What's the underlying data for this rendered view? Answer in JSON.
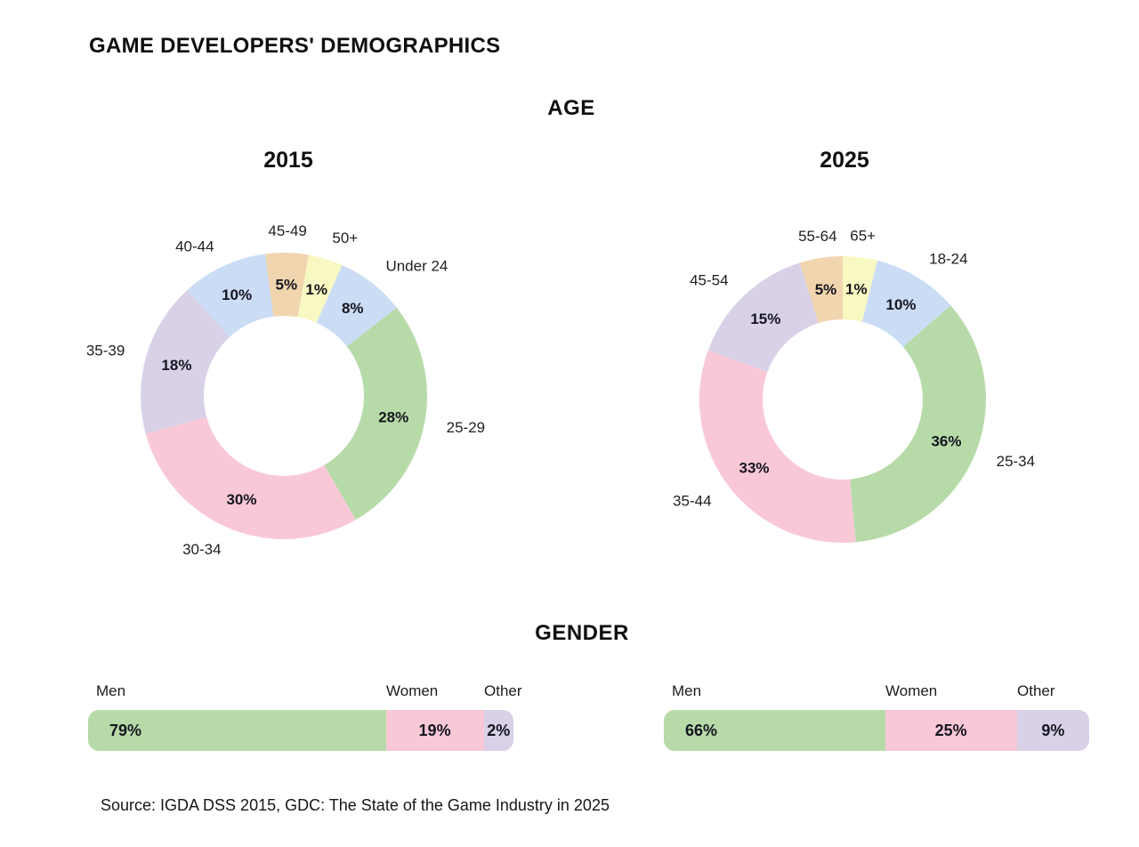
{
  "page": {
    "title": "GAME DEVELOPERS' DEMOGRAPHICS",
    "source": "Source: IGDA DSS 2015, GDC: The State of the Game Industry in 2025"
  },
  "sections": {
    "age": {
      "heading": "AGE"
    },
    "gender": {
      "heading": "GENDER"
    }
  },
  "palette": {
    "green": "#b6dba8",
    "pink": "#f9c8d7",
    "lavender": "#d8d1e8",
    "blue": "#cbdcf5",
    "tan": "#f1d5ae",
    "yellow": "#f8f8c2"
  },
  "chart_data": [
    {
      "id": "age-2015",
      "type": "pie",
      "title": "2015",
      "labels": [
        "Under 24",
        "25-29",
        "30-34",
        "35-39",
        "40-44",
        "45-49",
        "50+"
      ],
      "values": [
        8,
        28,
        30,
        18,
        10,
        5,
        1
      ],
      "colors": [
        "blue",
        "green",
        "pink",
        "lavender",
        "blue",
        "tan",
        "yellow"
      ],
      "layout": {
        "donut": true,
        "inner_ratio": 0.56,
        "rotation_deg": 24,
        "min_display_weight": 4,
        "label_radius": 186,
        "legend": "none"
      }
    },
    {
      "id": "age-2025",
      "type": "pie",
      "title": "2025",
      "labels": [
        "18-24",
        "25-34",
        "35-44",
        "45-54",
        "55-64",
        "65+"
      ],
      "values": [
        10,
        36,
        33,
        15,
        5,
        1
      ],
      "colors": [
        "blue",
        "green",
        "pink",
        "lavender",
        "tan",
        "yellow"
      ],
      "layout": {
        "donut": true,
        "inner_ratio": 0.56,
        "rotation_deg": 14,
        "min_display_weight": 4,
        "label_radius": 186,
        "legend": "none"
      }
    },
    {
      "id": "gender-2015",
      "type": "bar",
      "categories": [
        "Men",
        "Women",
        "Other"
      ],
      "values": [
        79,
        19,
        2
      ],
      "colors": [
        "green",
        "pink",
        "lavender"
      ],
      "layout": {
        "stacked": true,
        "orientation": "horizontal",
        "display_pct": [
          70,
          23,
          7
        ]
      }
    },
    {
      "id": "gender-2025",
      "type": "bar",
      "categories": [
        "Men",
        "Women",
        "Other"
      ],
      "values": [
        66,
        25,
        9
      ],
      "colors": [
        "green",
        "pink",
        "lavender"
      ],
      "layout": {
        "stacked": true,
        "orientation": "horizontal",
        "display_pct": [
          52,
          31,
          17
        ]
      }
    }
  ]
}
